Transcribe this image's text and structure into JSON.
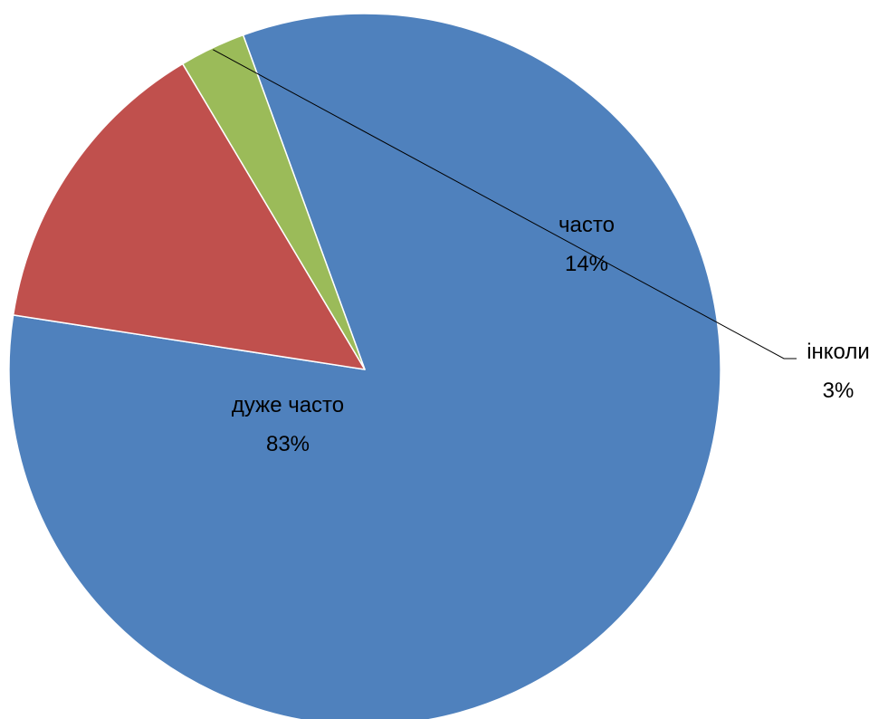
{
  "chart_data": {
    "type": "pie",
    "title": "",
    "categories": [
      "дуже часто",
      "часто",
      "інколи"
    ],
    "values": [
      83,
      14,
      3
    ],
    "value_labels": [
      "83%",
      "14%",
      "3%"
    ],
    "colors": [
      "#4F81BD",
      "#C0504D",
      "#9BBB59"
    ],
    "start_angle_deg": -20,
    "direction": "clockwise",
    "legend": "none",
    "data_labels": "category and percent"
  }
}
